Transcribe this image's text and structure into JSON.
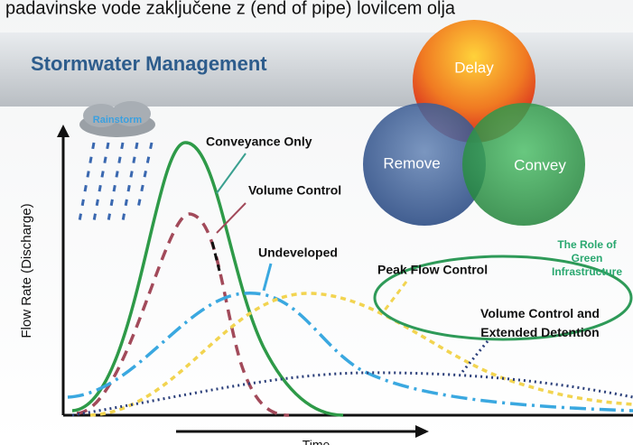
{
  "caption": "padavinske vode zaključene z (end of pipe) lovilcem olja",
  "header": {
    "title": "Stormwater Management"
  },
  "venn": {
    "top": "Delay",
    "left": "Remove",
    "right": "Convey"
  },
  "cloud": "Rainstorm",
  "axes": {
    "y_label": "Flow Rate (Discharge)",
    "x_label": "Time"
  },
  "curves": {
    "conveyance": "Conveyance Only",
    "volume_control": "Volume Control",
    "undeveloped": "Undeveloped",
    "peak_flow": "Peak Flow Control",
    "extended": "Volume Control and Extended Detention"
  },
  "callout": "The Role of Green Infrastructure"
}
